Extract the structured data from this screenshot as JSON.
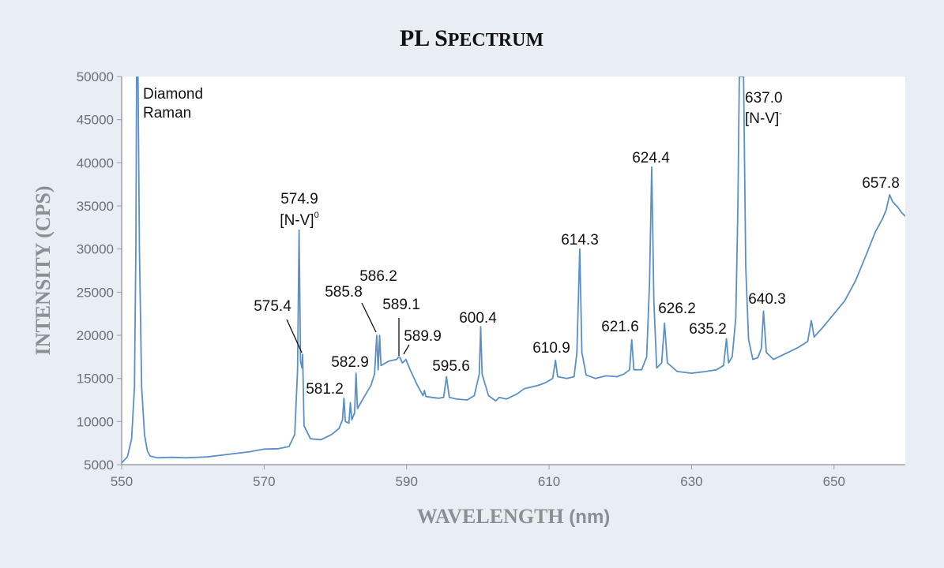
{
  "chart_data": {
    "type": "line",
    "title": "PL Spectrum",
    "xlabel": "WAVELENGTH",
    "xlabel_unit": "(nm)",
    "ylabel": "INTENSITY (CPS)",
    "xlim": [
      550,
      660
    ],
    "ylim": [
      5000,
      50000
    ],
    "x_ticks": [
      550,
      570,
      590,
      610,
      630,
      650
    ],
    "y_ticks": [
      5000,
      10000,
      15000,
      20000,
      25000,
      30000,
      35000,
      40000,
      45000,
      50000
    ],
    "series": [
      {
        "name": "PL spectrum",
        "color": "#5b8fc7",
        "points": [
          [
            550.0,
            5200
          ],
          [
            550.8,
            5900
          ],
          [
            551.4,
            8000
          ],
          [
            551.8,
            14000
          ],
          [
            552.0,
            30000
          ],
          [
            552.1,
            50000
          ],
          [
            552.3,
            50000
          ],
          [
            552.5,
            30000
          ],
          [
            552.8,
            14000
          ],
          [
            553.2,
            8500
          ],
          [
            553.6,
            6600
          ],
          [
            554.0,
            6000
          ],
          [
            555,
            5800
          ],
          [
            557,
            5850
          ],
          [
            559,
            5800
          ],
          [
            562,
            5900
          ],
          [
            565,
            6200
          ],
          [
            568,
            6500
          ],
          [
            570,
            6800
          ],
          [
            572,
            6850
          ],
          [
            573.5,
            7100
          ],
          [
            574.3,
            8500
          ],
          [
            574.7,
            16000
          ],
          [
            574.9,
            32200
          ],
          [
            575.1,
            17000
          ],
          [
            575.3,
            16200
          ],
          [
            575.4,
            17800
          ],
          [
            575.6,
            9500
          ],
          [
            576.5,
            8000
          ],
          [
            578,
            7900
          ],
          [
            579.5,
            8500
          ],
          [
            580.5,
            9200
          ],
          [
            581.0,
            10200
          ],
          [
            581.2,
            12700
          ],
          [
            581.4,
            10000
          ],
          [
            581.9,
            9800
          ],
          [
            582.1,
            12200
          ],
          [
            582.3,
            10200
          ],
          [
            582.7,
            11000
          ],
          [
            582.9,
            15600
          ],
          [
            583.1,
            11500
          ],
          [
            584,
            12800
          ],
          [
            585,
            14200
          ],
          [
            585.5,
            15500
          ],
          [
            585.8,
            20000
          ],
          [
            586.0,
            16000
          ],
          [
            586.2,
            20000
          ],
          [
            586.4,
            16500
          ],
          [
            587.5,
            17000
          ],
          [
            588.6,
            17200
          ],
          [
            588.9,
            17500
          ],
          [
            589.1,
            17400
          ],
          [
            589.4,
            16800
          ],
          [
            589.7,
            17000
          ],
          [
            589.9,
            17200
          ],
          [
            590.5,
            16000
          ],
          [
            591.5,
            14200
          ],
          [
            592.3,
            13000
          ],
          [
            592.5,
            13600
          ],
          [
            592.7,
            12900
          ],
          [
            593.5,
            12800
          ],
          [
            594.5,
            12700
          ],
          [
            595.2,
            12800
          ],
          [
            595.6,
            15200
          ],
          [
            596.0,
            12800
          ],
          [
            597,
            12600
          ],
          [
            598.5,
            12500
          ],
          [
            599.5,
            13000
          ],
          [
            600.2,
            15500
          ],
          [
            600.4,
            21000
          ],
          [
            600.6,
            15500
          ],
          [
            601.5,
            13000
          ],
          [
            602.5,
            12400
          ],
          [
            603,
            12800
          ],
          [
            604,
            12600
          ],
          [
            605.5,
            13200
          ],
          [
            606.5,
            13800
          ],
          [
            607.5,
            14000
          ],
          [
            608.5,
            14200
          ],
          [
            609.5,
            14500
          ],
          [
            610.5,
            15000
          ],
          [
            610.9,
            17100
          ],
          [
            611.2,
            15200
          ],
          [
            612.5,
            15000
          ],
          [
            613.5,
            15200
          ],
          [
            613.9,
            18000
          ],
          [
            614.3,
            30000
          ],
          [
            614.6,
            18000
          ],
          [
            615.2,
            15400
          ],
          [
            616.5,
            15000
          ],
          [
            618,
            15300
          ],
          [
            619.5,
            15200
          ],
          [
            620.5,
            15500
          ],
          [
            621.3,
            16000
          ],
          [
            621.6,
            19500
          ],
          [
            621.9,
            16000
          ],
          [
            623,
            16000
          ],
          [
            623.7,
            17500
          ],
          [
            624.1,
            26000
          ],
          [
            624.4,
            39500
          ],
          [
            624.7,
            24000
          ],
          [
            625.1,
            16200
          ],
          [
            625.8,
            16800
          ],
          [
            626.2,
            21400
          ],
          [
            626.6,
            16800
          ],
          [
            628,
            15800
          ],
          [
            630,
            15600
          ],
          [
            632,
            15800
          ],
          [
            633.5,
            16000
          ],
          [
            634.5,
            16500
          ],
          [
            634.9,
            19600
          ],
          [
            635.2,
            16800
          ],
          [
            635.7,
            17500
          ],
          [
            636.2,
            22000
          ],
          [
            636.5,
            35000
          ],
          [
            636.7,
            50000
          ],
          [
            637.3,
            50000
          ],
          [
            637.6,
            28000
          ],
          [
            638.0,
            19500
          ],
          [
            638.6,
            17200
          ],
          [
            639.3,
            17400
          ],
          [
            639.8,
            18500
          ],
          [
            640.1,
            22800
          ],
          [
            640.5,
            18000
          ],
          [
            641.5,
            17200
          ],
          [
            643,
            17800
          ],
          [
            645,
            18600
          ],
          [
            646.3,
            19300
          ],
          [
            646.8,
            21700
          ],
          [
            647.2,
            19800
          ],
          [
            648.5,
            21000
          ],
          [
            650,
            22500
          ],
          [
            651.5,
            24000
          ],
          [
            653,
            26300
          ],
          [
            654.5,
            29300
          ],
          [
            655.8,
            32000
          ],
          [
            656.8,
            33500
          ],
          [
            657.3,
            34500
          ],
          [
            657.8,
            36300
          ],
          [
            658.2,
            35500
          ],
          [
            659,
            34800
          ],
          [
            659.5,
            34200
          ],
          [
            660,
            33800
          ]
        ]
      }
    ],
    "annotations": [
      {
        "id": "raman",
        "lines": [
          "Diamond",
          "Raman"
        ]
      },
      {
        "id": "p5749",
        "lines": [
          "574.9",
          "[N-V]"
        ],
        "sup": "0"
      },
      {
        "id": "p5754",
        "lines": [
          "575.4"
        ]
      },
      {
        "id": "p5812",
        "lines": [
          "581.2"
        ]
      },
      {
        "id": "p5829",
        "lines": [
          "582.9"
        ]
      },
      {
        "id": "p5858",
        "lines": [
          "585.8"
        ]
      },
      {
        "id": "p5862",
        "lines": [
          "586.2"
        ]
      },
      {
        "id": "p5891",
        "lines": [
          "589.1"
        ]
      },
      {
        "id": "p5899",
        "lines": [
          "589.9"
        ]
      },
      {
        "id": "p5956",
        "lines": [
          "595.6"
        ]
      },
      {
        "id": "p6004",
        "lines": [
          "600.4"
        ]
      },
      {
        "id": "p6109",
        "lines": [
          "610.9"
        ]
      },
      {
        "id": "p6143",
        "lines": [
          "614.3"
        ]
      },
      {
        "id": "p6216",
        "lines": [
          "621.6"
        ]
      },
      {
        "id": "p6244",
        "lines": [
          "624.4"
        ]
      },
      {
        "id": "p6262",
        "lines": [
          "626.2"
        ]
      },
      {
        "id": "p6352",
        "lines": [
          "635.2"
        ]
      },
      {
        "id": "p6370",
        "lines": [
          "637.0",
          "[N-V]"
        ],
        "sup": "-"
      },
      {
        "id": "p6403",
        "lines": [
          "640.3"
        ]
      },
      {
        "id": "p6578",
        "lines": [
          "657.8"
        ]
      }
    ]
  }
}
